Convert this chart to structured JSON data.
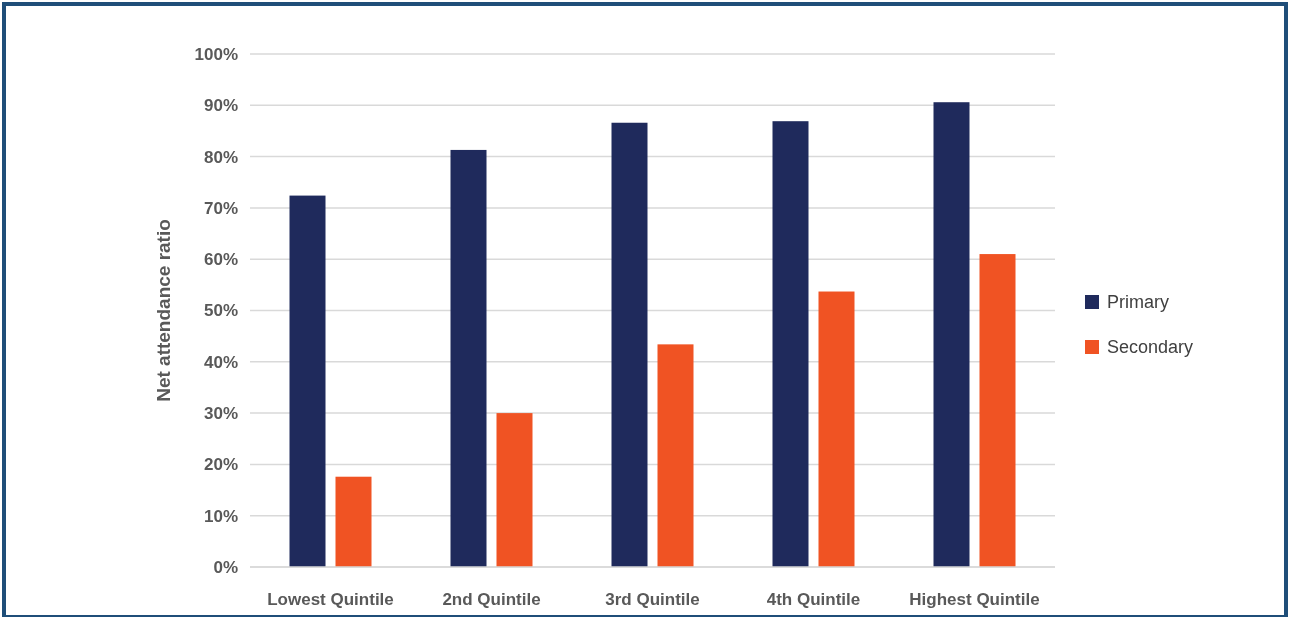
{
  "chart_data": {
    "type": "bar",
    "ylabel": "Net attendance ratio",
    "categories": [
      "Lowest Quintile",
      "2nd Quintile",
      "3rd Quintile",
      "4th Quintile",
      "Highest Quintile"
    ],
    "series": [
      {
        "name": "Primary",
        "color": "#1f2a5c",
        "values": [
          72.4,
          81.3,
          86.6,
          86.9,
          90.6
        ]
      },
      {
        "name": "Secondary",
        "color": "#f05323",
        "values": [
          17.6,
          30.0,
          43.4,
          53.7,
          61.0
        ]
      }
    ],
    "ylim": [
      0,
      100
    ],
    "yticks": [
      {
        "value": 0,
        "label": "0%"
      },
      {
        "value": 10,
        "label": "10%"
      },
      {
        "value": 20,
        "label": "20%"
      },
      {
        "value": 30,
        "label": "30%"
      },
      {
        "value": 40,
        "label": "40%"
      },
      {
        "value": 50,
        "label": "50%"
      },
      {
        "value": 60,
        "label": "60%"
      },
      {
        "value": 70,
        "label": "70%"
      },
      {
        "value": 80,
        "label": "80%"
      },
      {
        "value": 90,
        "label": "90%"
      },
      {
        "value": 100,
        "label": "100%"
      }
    ],
    "grid": "y",
    "legend": "right"
  }
}
